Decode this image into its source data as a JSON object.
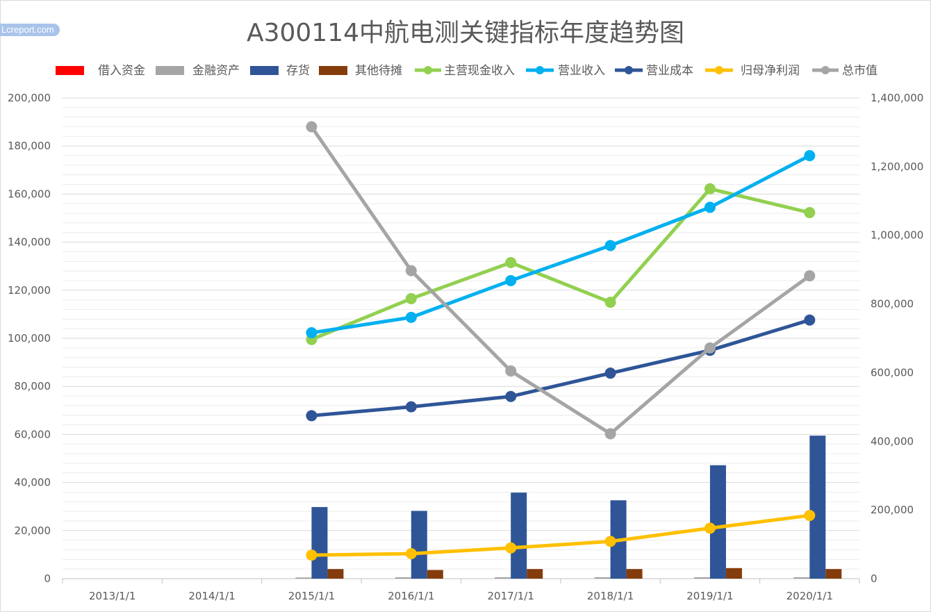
{
  "title": "A300114中航电测关键指标年度趋势图",
  "watermark": "Lcreport.com",
  "chart_data": {
    "type": "bar+line",
    "title": "A300114中航电测关键指标年度趋势图",
    "categories": [
      "2013/1/1",
      "2014/1/1",
      "2015/1/1",
      "2016/1/1",
      "2017/1/1",
      "2018/1/1",
      "2019/1/1",
      "2020/1/1"
    ],
    "y_left": {
      "ylim": [
        0,
        200000
      ],
      "ticks": [
        "0",
        "20,000",
        "40,000",
        "60,000",
        "80,000",
        "100,000",
        "120,000",
        "140,000",
        "160,000",
        "180,000",
        "200,000"
      ]
    },
    "y_right": {
      "ylim": [
        0,
        1400000
      ],
      "ticks": [
        "0",
        "200,000",
        "400,000",
        "600,000",
        "800,000",
        "1,000,000",
        "1,200,000",
        "1,400,000"
      ]
    },
    "legend_position": "top",
    "bar_series": [
      {
        "name": "借入资金",
        "color": "#ff0000",
        "values": [
          null,
          null,
          0,
          0,
          0,
          0,
          0,
          0
        ]
      },
      {
        "name": "金融资产",
        "color": "#a5a5a5",
        "values": [
          null,
          null,
          500,
          600,
          600,
          600,
          600,
          600
        ]
      },
      {
        "name": "存货",
        "color": "#2f5597",
        "values": [
          null,
          null,
          29800,
          28200,
          35800,
          32600,
          47200,
          59500
        ]
      },
      {
        "name": "其他待摊",
        "color": "#843c0c",
        "values": [
          null,
          null,
          4000,
          3600,
          4000,
          4000,
          4400,
          4000
        ]
      }
    ],
    "line_series": [
      {
        "name": "主营现金收入",
        "color": "#92d050",
        "axis": "left",
        "values": [
          null,
          null,
          99500,
          116500,
          131500,
          115000,
          162200,
          152300
        ]
      },
      {
        "name": "营业收入",
        "color": "#00b0f0",
        "axis": "left",
        "values": [
          null,
          null,
          102300,
          108700,
          124000,
          138600,
          154500,
          176000
        ]
      },
      {
        "name": "营业成本",
        "color": "#2f5597",
        "axis": "left",
        "values": [
          null,
          null,
          67800,
          71500,
          75800,
          85500,
          95000,
          107600
        ]
      },
      {
        "name": "归母净利润",
        "color": "#ffc000",
        "axis": "left",
        "values": [
          null,
          null,
          9800,
          10400,
          12800,
          15500,
          21000,
          26300
        ]
      },
      {
        "name": "总市值",
        "color": "#a5a5a5",
        "axis": "right",
        "values": [
          null,
          null,
          1316000,
          897000,
          605000,
          422000,
          672000,
          882000
        ]
      }
    ]
  }
}
